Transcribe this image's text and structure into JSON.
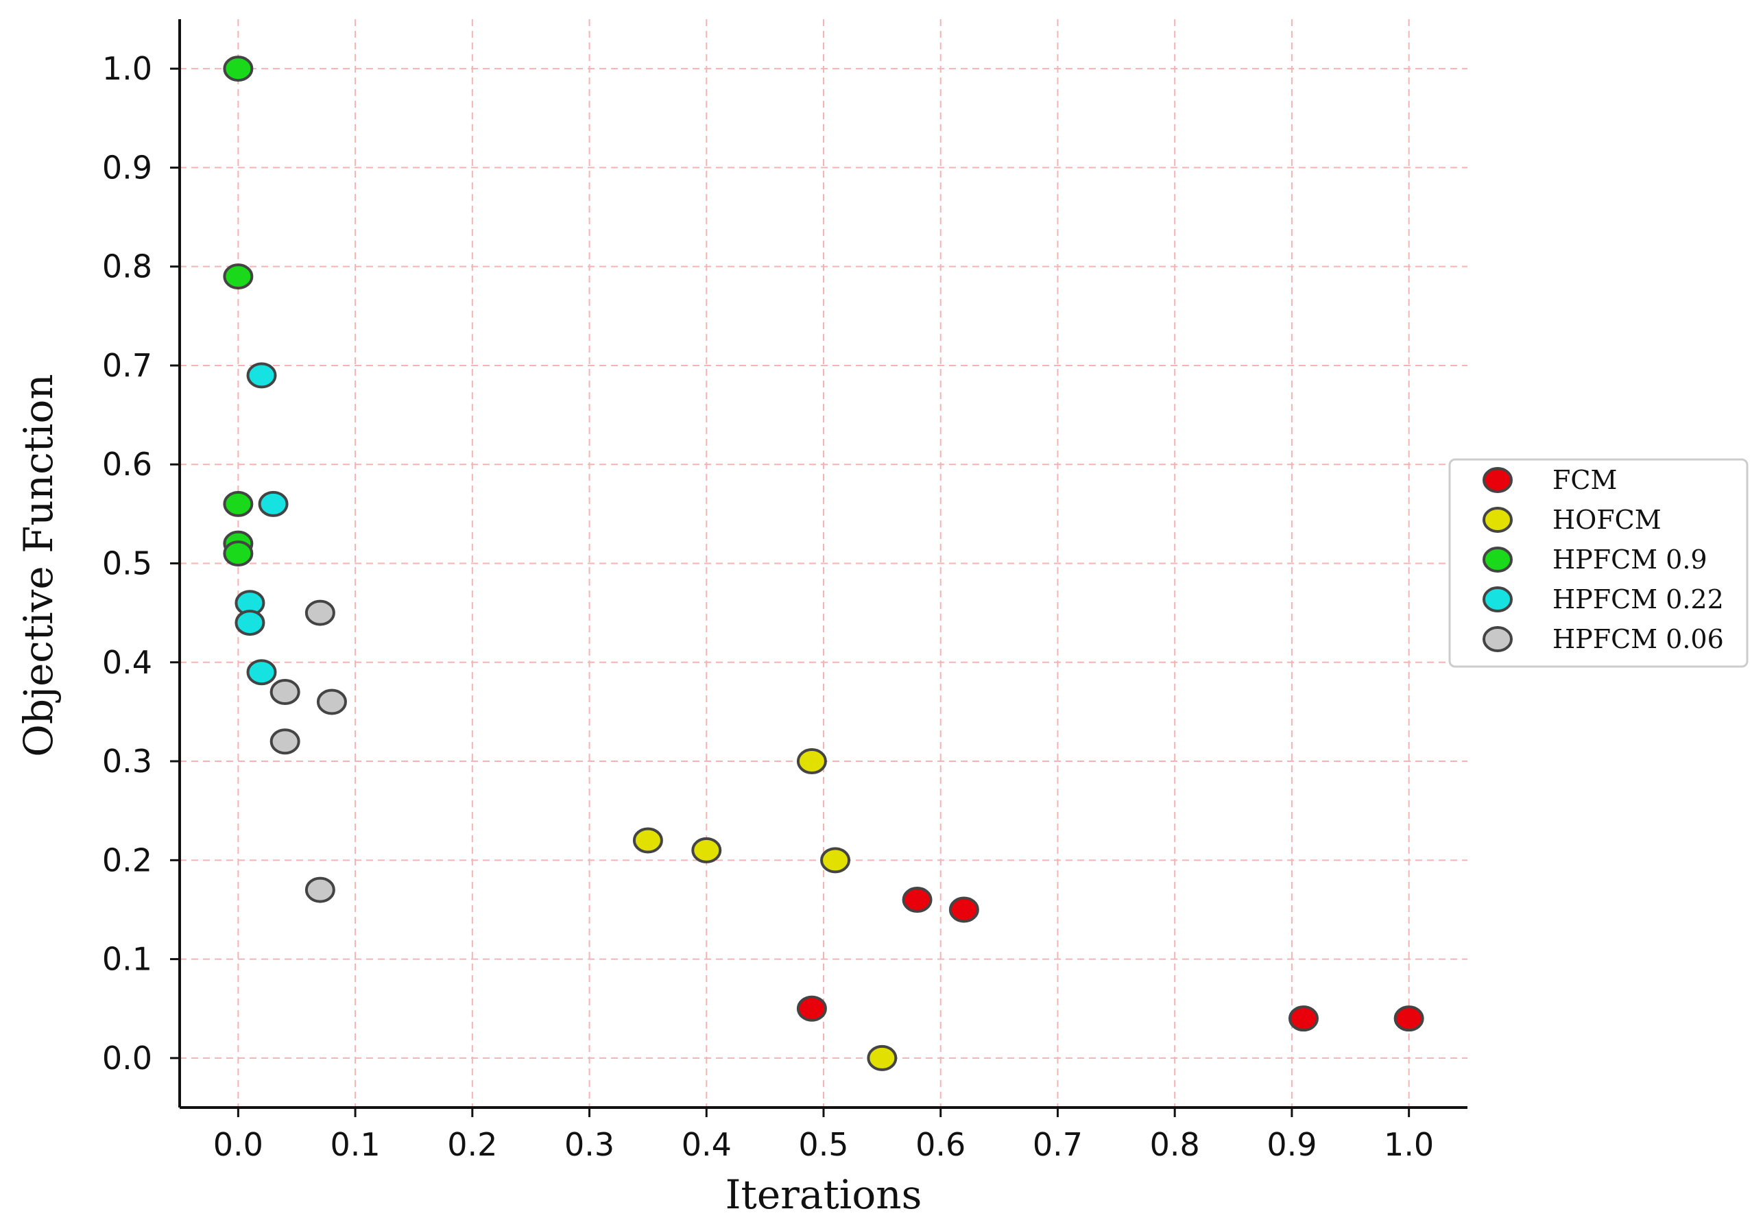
{
  "chart_data": {
    "type": "scatter",
    "title": "",
    "xlabel": "Iterations",
    "ylabel": "Objective Function",
    "xlim": [
      -0.05,
      1.05
    ],
    "ylim": [
      -0.05,
      1.05
    ],
    "xticks": [
      0.0,
      0.1,
      0.2,
      0.3,
      0.4,
      0.5,
      0.6,
      0.7,
      0.8,
      0.9,
      1.0
    ],
    "yticks": [
      0.0,
      0.1,
      0.2,
      0.3,
      0.4,
      0.5,
      0.6,
      0.7,
      0.8,
      0.9,
      1.0
    ],
    "xtick_labels": [
      "0.0",
      "0.1",
      "0.2",
      "0.3",
      "0.4",
      "0.5",
      "0.6",
      "0.7",
      "0.8",
      "0.9",
      "1.0"
    ],
    "ytick_labels": [
      "0.0",
      "0.1",
      "0.2",
      "0.3",
      "0.4",
      "0.5",
      "0.6",
      "0.7",
      "0.8",
      "0.9",
      "1.0"
    ],
    "grid": true,
    "grid_color": "#f6b3b3",
    "legend_position": "center-right",
    "series": [
      {
        "name": "FCM",
        "color": "#e8000b",
        "points": [
          [
            0.49,
            0.05
          ],
          [
            0.58,
            0.16
          ],
          [
            0.62,
            0.15
          ],
          [
            0.91,
            0.04
          ],
          [
            1.0,
            0.04
          ]
        ]
      },
      {
        "name": "HOFCM",
        "color": "#e1e000",
        "points": [
          [
            0.35,
            0.22
          ],
          [
            0.4,
            0.21
          ],
          [
            0.49,
            0.3
          ],
          [
            0.51,
            0.2
          ],
          [
            0.55,
            0.0
          ]
        ]
      },
      {
        "name": "HPFCM 0.9",
        "color": "#1ad81a",
        "points": [
          [
            0.0,
            1.0
          ],
          [
            0.0,
            0.79
          ],
          [
            0.0,
            0.56
          ],
          [
            0.0,
            0.52
          ],
          [
            0.0,
            0.51
          ]
        ]
      },
      {
        "name": "HPFCM 0.22",
        "color": "#17e2e2",
        "points": [
          [
            0.02,
            0.69
          ],
          [
            0.03,
            0.56
          ],
          [
            0.01,
            0.46
          ],
          [
            0.01,
            0.44
          ],
          [
            0.02,
            0.39
          ]
        ]
      },
      {
        "name": "HPFCM 0.06",
        "color": "#c8c8c8",
        "points": [
          [
            0.07,
            0.45
          ],
          [
            0.04,
            0.37
          ],
          [
            0.08,
            0.36
          ],
          [
            0.04,
            0.32
          ],
          [
            0.07,
            0.17
          ]
        ]
      }
    ]
  }
}
